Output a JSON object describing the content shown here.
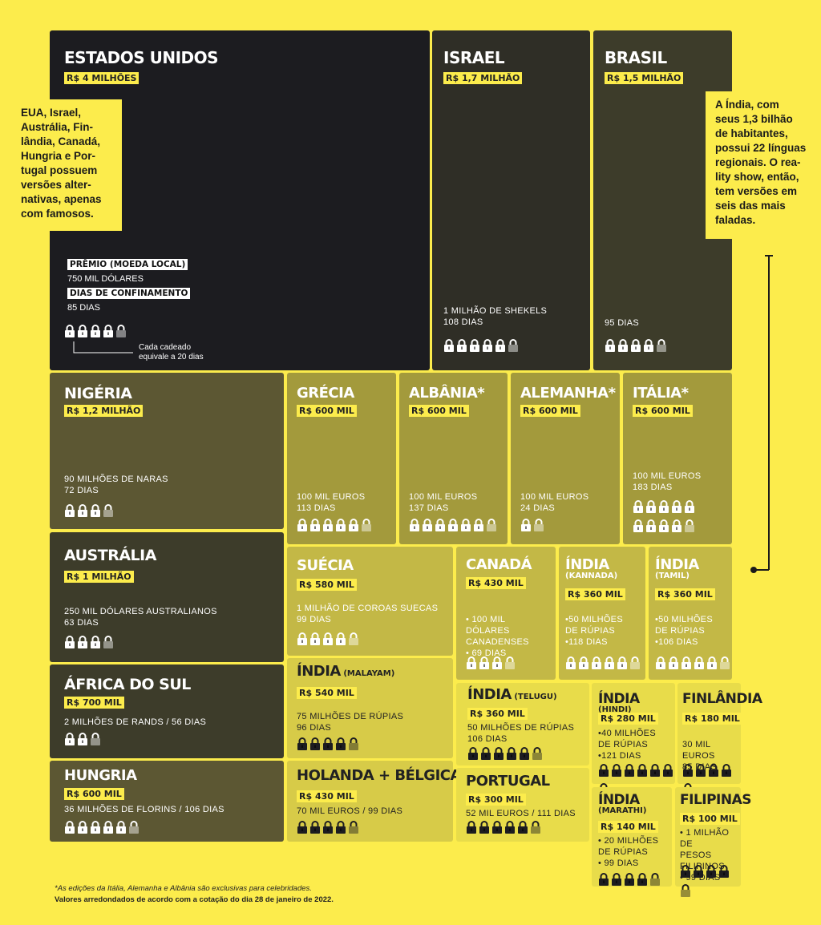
{
  "legend": {
    "prize_label": "PRÊMIO (MOEDA LOCAL)",
    "prize_value": "750 MIL DÓLARES",
    "days_label": "DIAS DE CONFINAMENTO",
    "days_value": "85 DIAS",
    "lock_note_1": "Cada cadeado",
    "lock_note_2": "equivale a 20 dias"
  },
  "notes": {
    "left": [
      "EUA, Israel,",
      "Austrália, Fin-",
      "lândia, Canadá,",
      "Hungria e Por-",
      "tugal possuem",
      "versões alter-",
      "nativas, apenas",
      "com famosos."
    ],
    "right": [
      "A Índia, com",
      "seus 1,3 bilhão",
      "de habitantes,",
      "possui 22 línguas",
      "regionais. O rea-",
      "lity show, então,",
      "tem versões em",
      "seis das mais",
      "faladas."
    ]
  },
  "footer": {
    "line1": "*As edições da Itália, Alemanha e Albânia são exclusivas para celebridades.",
    "line2": "Valores arredondados de acordo com a cotação do dia 28 de janeiro de 2022."
  },
  "tiles": [
    {
      "id": "estados-unidos",
      "name": "ESTADOS UNIDOS",
      "sub": "",
      "prize": "R$ 4 MILHÕES",
      "info": [],
      "locks": 4.25
    },
    {
      "id": "israel",
      "name": "ISRAEL",
      "sub": "",
      "prize": "R$ 1,7 MILHÃO",
      "info": [
        "1 MILHÃO DE SHEKELS",
        "108 DIAS"
      ],
      "locks": 5.4
    },
    {
      "id": "brasil",
      "name": "BRASIL",
      "sub": "",
      "prize": "R$ 1,5 MILHÃO",
      "info": [
        "95 DIAS"
      ],
      "locks": 4.75
    },
    {
      "id": "nigeria",
      "name": "NIGÉRIA",
      "sub": "",
      "prize": "R$ 1,2 MILHÃO",
      "info": [
        "90 MILHÕES DE NARAS",
        "72 DIAS"
      ],
      "locks": 3.6
    },
    {
      "id": "grecia",
      "name": "GRÉCIA",
      "sub": "",
      "prize": "R$ 600 MIL",
      "info": [
        "100 MIL EUROS",
        "113 DIAS"
      ],
      "locks": 5.65
    },
    {
      "id": "albania",
      "name": "ALBÂNIA*",
      "sub": "",
      "prize": "R$ 600 MIL",
      "info": [
        "100 MIL EUROS",
        "137 DIAS"
      ],
      "locks": 6.85
    },
    {
      "id": "alemanha",
      "name": "ALEMANHA*",
      "sub": "",
      "prize": "R$ 600 MIL",
      "info": [
        "100 MIL EUROS",
        "24 DIAS"
      ],
      "locks": 1.2
    },
    {
      "id": "italia",
      "name": "ITÁLIA*",
      "sub": "",
      "prize": "R$ 600 MIL",
      "info": [
        "100 MIL EUROS",
        "183 DIAS"
      ],
      "locks": 9.15
    },
    {
      "id": "australia",
      "name": "AUSTRÁLIA",
      "sub": "",
      "prize": "R$ 1 MILHÃO",
      "info": [
        "250 MIL DÓLARES AUSTRALIANOS",
        "63 DIAS"
      ],
      "locks": 3.15
    },
    {
      "id": "suecia",
      "name": "SUÉCIA",
      "sub": "",
      "prize": "R$ 580 MIL",
      "info": [
        "1 MILHÃO DE COROAS SUECAS",
        "99 DIAS"
      ],
      "locks": 4.95
    },
    {
      "id": "canada",
      "name": "CANADÁ",
      "sub": "",
      "prize": "R$ 430 MIL",
      "info": [
        "• 100 MIL DÓLARES",
        "CANADENSES",
        "• 69 DIAS"
      ],
      "locks": 3.45
    },
    {
      "id": "india-kannada",
      "name": "ÍNDIA",
      "sub": "(KANNADA)",
      "prize": "R$ 360 MIL",
      "info": [
        "•50 MILHÕES",
        "DE RÚPIAS",
        "•118 DIAS"
      ],
      "locks": 5.9
    },
    {
      "id": "india-tamil",
      "name": "ÍNDIA",
      "sub": "(TAMIL)",
      "prize": "R$ 360 MIL",
      "info": [
        "•50 MILHÕES",
        "DE RÚPIAS",
        "•106 DIAS"
      ],
      "locks": 5.3
    },
    {
      "id": "africa-do-sul",
      "name": "ÁFRICA DO SUL",
      "sub": "",
      "prize": "R$ 700 MIL",
      "info": [
        "2 MILHÕES DE RANDS / 56 DIAS"
      ],
      "locks": 2.8
    },
    {
      "id": "india-malayam",
      "name": "ÍNDIA",
      "sub": "(MALAYAM)",
      "prize": "R$ 540 MIL",
      "info": [
        "75 MILHÕES DE RÚPIAS",
        "96 DIAS"
      ],
      "locks": 4.8
    },
    {
      "id": "india-telugu",
      "name": "ÍNDIA",
      "sub": "(TELUGU)",
      "prize": "R$ 360 MIL",
      "info": [
        "50 MILHÕES DE RÚPIAS",
        "106 DIAS"
      ],
      "locks": 5.3
    },
    {
      "id": "india-hindi",
      "name": "ÍNDIA",
      "sub": "(HINDI)",
      "prize": "R$ 280 MIL",
      "info": [
        "•40 MILHÕES",
        "DE RÚPIAS",
        "•121 DIAS"
      ],
      "locks": 6.05
    },
    {
      "id": "finlandia",
      "name": "FINLÂNDIA",
      "sub": "",
      "prize": "R$ 180 MIL",
      "info": [
        "30 MIL EUROS",
        "85 DIAS"
      ],
      "locks": 4.25
    },
    {
      "id": "hungria",
      "name": "HUNGRIA",
      "sub": "",
      "prize": "R$ 600 MIL",
      "info": [
        "36 MILHÕES DE FLORINS / 106 DIAS"
      ],
      "locks": 5.3
    },
    {
      "id": "holanda-belgica",
      "name": "HOLANDA + BÉLGICA",
      "sub": "",
      "prize": "R$ 430 MIL",
      "info": [
        "70 MIL EUROS / 99 DIAS"
      ],
      "locks": 4.95
    },
    {
      "id": "portugal",
      "name": "PORTUGAL",
      "sub": "",
      "prize": "R$ 300 MIL",
      "info": [
        "52 MIL EUROS / 111 DIAS"
      ],
      "locks": 5.55
    },
    {
      "id": "india-marathi",
      "name": "ÍNDIA",
      "sub": "(MARATHI)",
      "prize": "R$ 140 MIL",
      "info": [
        "• 20 MILHÕES",
        "DE RÚPIAS",
        "• 99 DIAS"
      ],
      "locks": 4.95
    },
    {
      "id": "filipinas",
      "name": "FILIPINAS",
      "sub": "",
      "prize": "R$ 100 MIL",
      "info": [
        "• 1 MILHÃO DE",
        "PESOS FILIPINOS",
        "• 99 DIAS"
      ],
      "locks": 4.95
    }
  ],
  "colors": {
    "background": "#fcec4c",
    "darkest": "#1c1c20",
    "lightest": "#e8dc4a"
  }
}
